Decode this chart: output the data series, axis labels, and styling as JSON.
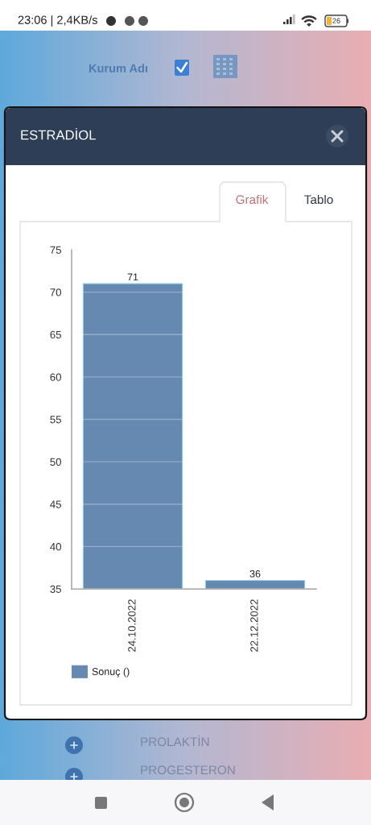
{
  "chart_data": {
    "type": "bar",
    "title": "ESTRADİOL",
    "categories": [
      "24.10.2022",
      "22.12.2022"
    ],
    "series": [
      {
        "name": "Sonuç ()",
        "color": "#6589b0",
        "values": [
          71,
          36
        ]
      }
    ],
    "ylim": [
      35,
      75
    ],
    "yticks": [
      35,
      40,
      45,
      50,
      55,
      60,
      65,
      70,
      75
    ],
    "grid": "y",
    "legend": "bottom left",
    "data_labels": true,
    "annotations": [
      "23:06 | 2,4KB/s",
      "26",
      "Kurum Adı",
      "Grafik",
      "Tablo",
      "PROLAKTİN",
      "PROGESTERON"
    ]
  }
}
